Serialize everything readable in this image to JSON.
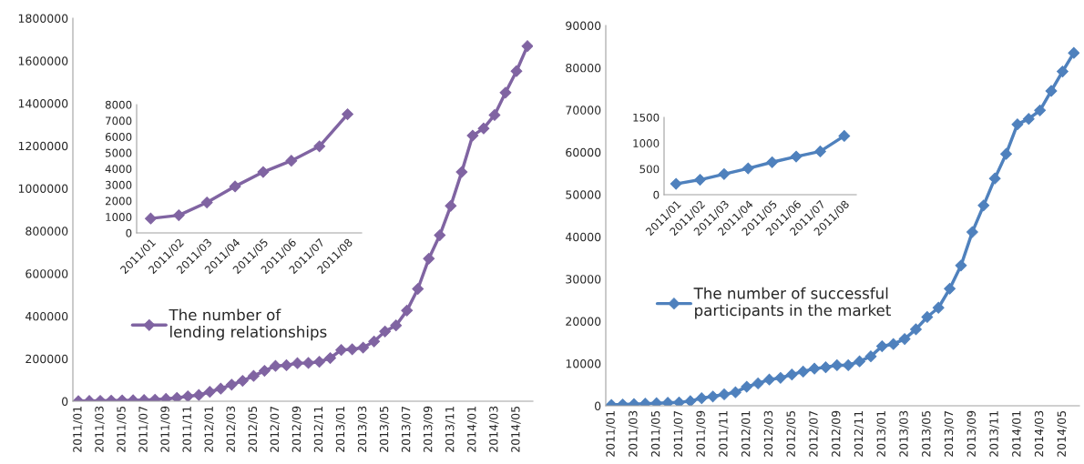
{
  "chart_data": [
    {
      "type": "line",
      "categories": [
        "2011/01",
        null,
        "2011/03",
        null,
        "2011/05",
        null,
        "2011/07",
        null,
        "2011/09",
        null,
        "2011/11",
        null,
        "2012/01",
        null,
        "2012/03",
        null,
        "2012/05",
        null,
        "2012/07",
        null,
        "2012/09",
        null,
        "2012/11",
        null,
        "2013/01",
        null,
        "2013/03",
        null,
        "2013/05",
        null,
        "2013/07",
        null,
        "2013/09",
        null,
        "2013/11",
        null,
        "2014/01",
        null,
        "2014/03",
        null,
        "2014/05",
        null
      ],
      "series": [
        {
          "name": "The number of\nlending relationships",
          "color": "#8064a2",
          "values": [
            900,
            1100,
            1900,
            2900,
            3800,
            4500,
            5400,
            7400,
            11000,
            16000,
            23000,
            29000,
            44000,
            59000,
            78000,
            96000,
            119000,
            143000,
            166000,
            169000,
            179000,
            180000,
            185000,
            203000,
            241000,
            244000,
            252000,
            281000,
            328000,
            356000,
            426000,
            528000,
            670000,
            780000,
            918000,
            1077000,
            1248000,
            1282000,
            1345000,
            1450000,
            1551000,
            1669000
          ]
        }
      ],
      "ylim": [
        0,
        1800000
      ],
      "yticks": [
        0,
        200000,
        400000,
        600000,
        800000,
        1000000,
        1200000,
        1400000,
        1600000,
        1800000
      ],
      "marker": "diamond",
      "legend": "left",
      "grid": false
    },
    {
      "type": "line",
      "categories": [
        "2011/01",
        "2011/02",
        "2011/03",
        "2011/04",
        "2011/05",
        "2011/06",
        "2011/07",
        "2011/08"
      ],
      "series": [
        {
          "color": "#8064a2",
          "values": [
            900,
            1100,
            1900,
            2900,
            3800,
            4500,
            5400,
            7400
          ]
        }
      ],
      "ylim": [
        0,
        8000
      ],
      "yticks": [
        0,
        1000,
        2000,
        3000,
        4000,
        5000,
        6000,
        7000,
        8000
      ],
      "marker": "diamond",
      "grid": false
    },
    {
      "type": "line",
      "categories": [
        "2011/01",
        null,
        "2011/03",
        null,
        "2011/05",
        null,
        "2011/07",
        null,
        "2011/09",
        null,
        "2011/11",
        null,
        "2012/01",
        null,
        "2012/03",
        null,
        "2012/05",
        null,
        "2012/07",
        null,
        "2012/09",
        null,
        "2012/11",
        null,
        "2013/01",
        null,
        "2013/03",
        null,
        "2013/05",
        null,
        "2013/07",
        null,
        "2013/09",
        null,
        "2013/11",
        null,
        "2014/01",
        null,
        "2014/03",
        null,
        "2014/05",
        null
      ],
      "series": [
        {
          "name": "The number of successful\nparticipants in the market",
          "color": "#4f81bd",
          "values": [
            200,
            300,
            400,
            500,
            600,
            700,
            800,
            1100,
            1800,
            2200,
            2700,
            3200,
            4500,
            5300,
            6200,
            6600,
            7400,
            8100,
            8800,
            9100,
            9600,
            9600,
            10500,
            11700,
            14100,
            14600,
            15800,
            18100,
            21000,
            23200,
            27700,
            33200,
            41100,
            47400,
            53800,
            59600,
            66600,
            67900,
            69900,
            74500,
            79100,
            83500
          ]
        }
      ],
      "ylim": [
        0,
        90000
      ],
      "yticks": [
        0,
        10000,
        20000,
        30000,
        40000,
        50000,
        60000,
        70000,
        80000,
        90000
      ],
      "marker": "diamond",
      "legend": "left",
      "grid": false
    },
    {
      "type": "line",
      "categories": [
        "2011/01",
        "2011/02",
        "2011/03",
        "2011/04",
        "2011/05",
        "2011/06",
        "2011/07",
        "2011/08"
      ],
      "series": [
        {
          "color": "#4f81bd",
          "values": [
            210,
            290,
            400,
            510,
            630,
            740,
            840,
            1140
          ]
        }
      ],
      "ylim": [
        0,
        1500
      ],
      "yticks": [
        0,
        500,
        1000,
        1500
      ],
      "marker": "diamond",
      "grid": false
    }
  ]
}
